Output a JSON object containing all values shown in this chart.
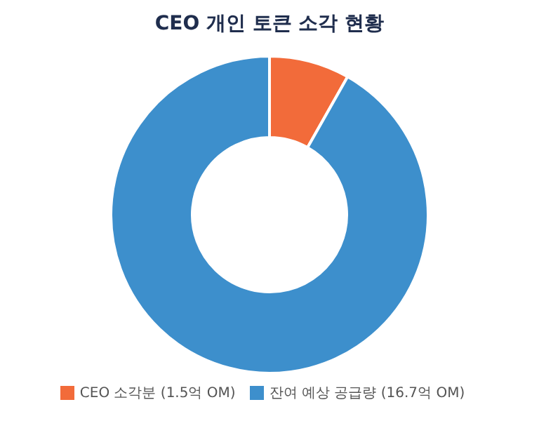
{
  "chart_data": {
    "type": "donut",
    "title": "CEO 개인 토큰 소각 현황",
    "categories": [
      "CEO 소각분 (1.5억 OM)",
      "잔여 예상 공급량 (16.7억 OM)"
    ],
    "values": [
      8.2,
      91.8
    ],
    "colors": [
      "#f26b3a",
      "#3d8fcc"
    ],
    "legend": "bottom"
  }
}
